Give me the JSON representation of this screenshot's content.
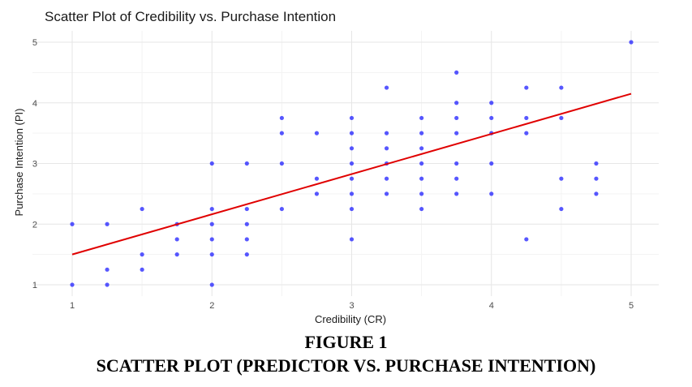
{
  "chart_data": {
    "type": "scatter",
    "title": "Scatter Plot of Credibility vs. Purchase Intention",
    "xlabel": "Credibility (CR)",
    "ylabel": "Purchase Intention (PI)",
    "xlim": [
      1,
      5
    ],
    "ylim": [
      1,
      5
    ],
    "xticks": [
      "1",
      "2",
      "3",
      "4",
      "5"
    ],
    "yticks": [
      "1",
      "2",
      "3",
      "4",
      "5"
    ],
    "grid": true,
    "point_color": "#1f1fff",
    "trend_color": "#e00000",
    "points": [
      [
        1,
        2
      ],
      [
        1,
        1
      ],
      [
        1.25,
        2
      ],
      [
        1.25,
        1.25
      ],
      [
        1.25,
        1
      ],
      [
        1.5,
        2.25
      ],
      [
        1.5,
        1.5
      ],
      [
        1.5,
        1.25
      ],
      [
        1.75,
        2
      ],
      [
        1.75,
        1.75
      ],
      [
        1.75,
        1.5
      ],
      [
        2,
        3
      ],
      [
        2,
        2.25
      ],
      [
        2,
        2
      ],
      [
        2,
        1.75
      ],
      [
        2,
        1.5
      ],
      [
        2,
        1
      ],
      [
        2.25,
        3
      ],
      [
        2.25,
        2.25
      ],
      [
        2.25,
        2
      ],
      [
        2.25,
        1.75
      ],
      [
        2.25,
        1.5
      ],
      [
        2.5,
        3.75
      ],
      [
        2.5,
        3.5
      ],
      [
        2.5,
        3
      ],
      [
        2.5,
        2.25
      ],
      [
        2.75,
        3.5
      ],
      [
        2.75,
        2.75
      ],
      [
        2.75,
        2.5
      ],
      [
        3,
        3.75
      ],
      [
        3,
        3.5
      ],
      [
        3,
        3.25
      ],
      [
        3,
        3
      ],
      [
        3,
        2.75
      ],
      [
        3,
        2.5
      ],
      [
        3,
        2.25
      ],
      [
        3,
        1.75
      ],
      [
        3.25,
        4.25
      ],
      [
        3.25,
        3.5
      ],
      [
        3.25,
        3.25
      ],
      [
        3.25,
        3
      ],
      [
        3.25,
        2.75
      ],
      [
        3.25,
        2.5
      ],
      [
        3.5,
        3.75
      ],
      [
        3.5,
        3.5
      ],
      [
        3.5,
        3.25
      ],
      [
        3.5,
        3
      ],
      [
        3.5,
        2.75
      ],
      [
        3.5,
        2.5
      ],
      [
        3.5,
        2.25
      ],
      [
        3.75,
        4.5
      ],
      [
        3.75,
        4
      ],
      [
        3.75,
        3.75
      ],
      [
        3.75,
        3.5
      ],
      [
        3.75,
        3
      ],
      [
        3.75,
        2.75
      ],
      [
        3.75,
        2.5
      ],
      [
        4,
        4
      ],
      [
        4,
        3.75
      ],
      [
        4,
        3.5
      ],
      [
        4,
        3
      ],
      [
        4,
        2.5
      ],
      [
        4.25,
        4.25
      ],
      [
        4.25,
        3.75
      ],
      [
        4.25,
        3.5
      ],
      [
        4.25,
        1.75
      ],
      [
        4.5,
        4.25
      ],
      [
        4.5,
        3.75
      ],
      [
        4.5,
        2.75
      ],
      [
        4.5,
        2.25
      ],
      [
        4.75,
        3
      ],
      [
        4.75,
        2.75
      ],
      [
        4.75,
        2.5
      ],
      [
        5,
        5
      ]
    ],
    "trend_line": {
      "x": [
        1,
        5
      ],
      "y": [
        1.5,
        4.15
      ]
    }
  },
  "caption": {
    "figure_label": "FIGURE 1",
    "figure_title": "SCATTER PLOT (PREDICTOR VS. PURCHASE INTENTION)"
  }
}
